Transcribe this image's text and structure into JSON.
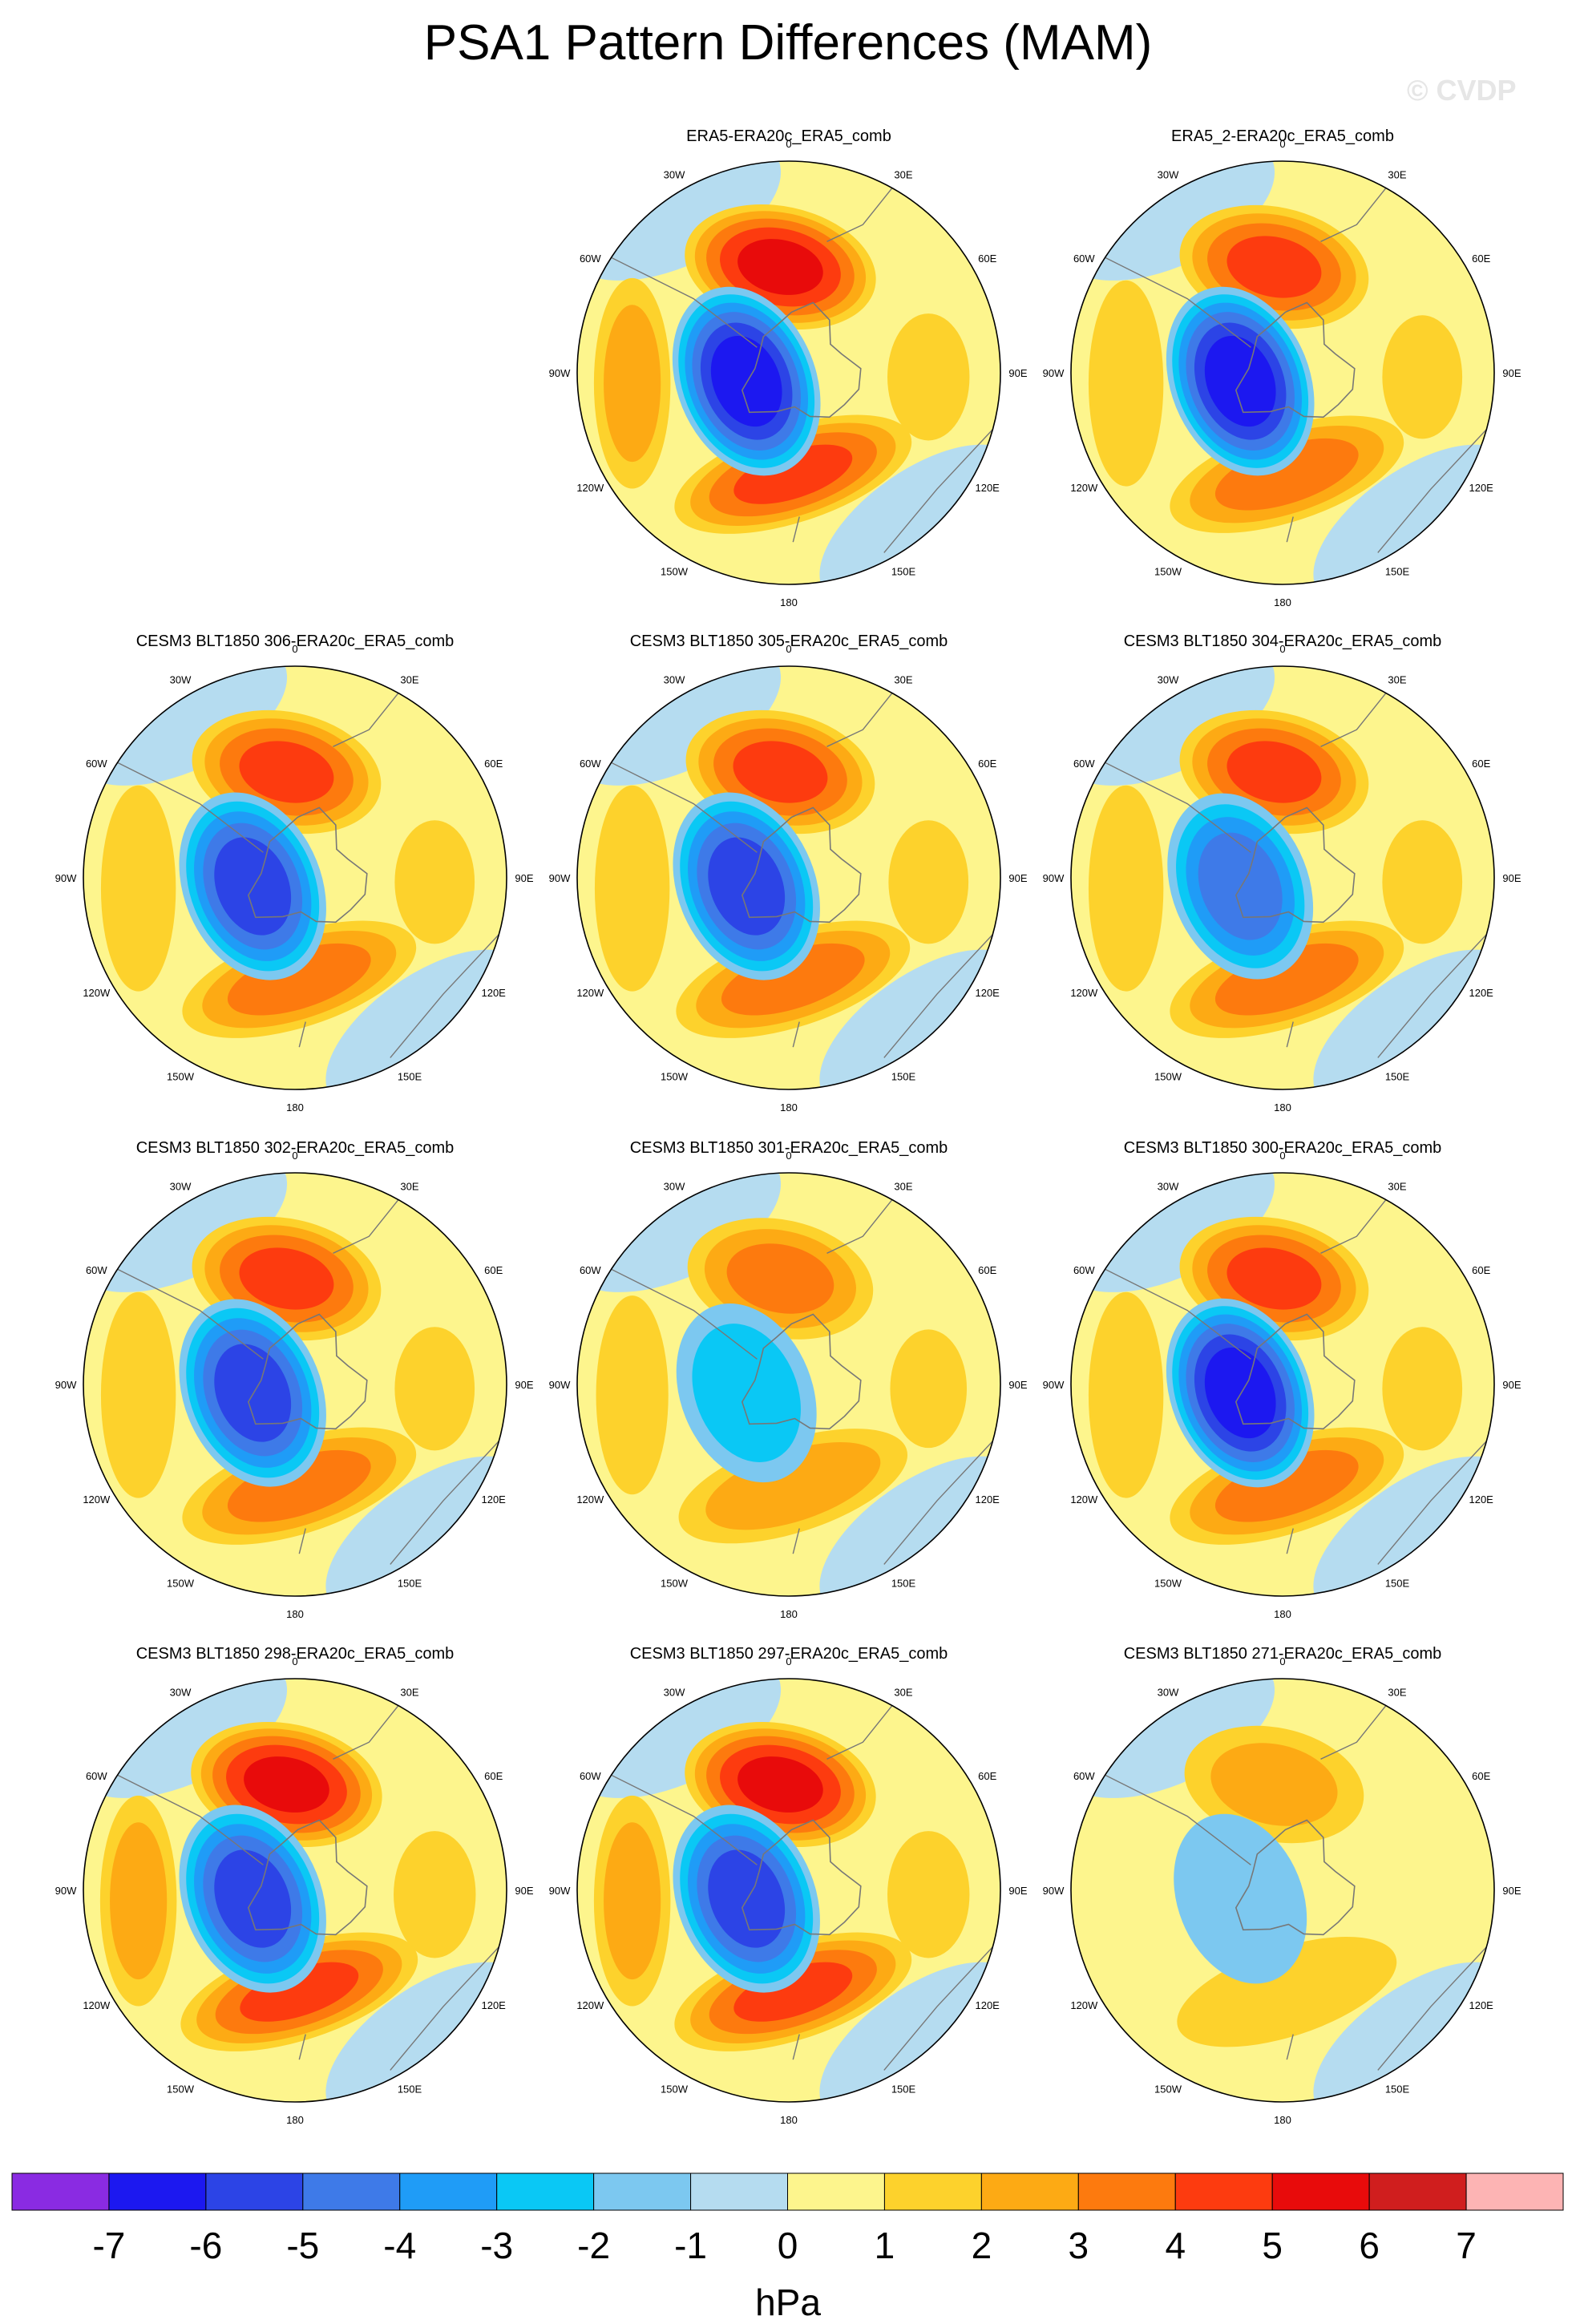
{
  "chart_data": {
    "type": "polar-contour-maps",
    "title": "PSA1 Pattern Differences (MAM)",
    "watermark": "© CVDP",
    "units": "hPa",
    "colorbar": {
      "ticks": [
        "-7",
        "-6",
        "-5",
        "-4",
        "-3",
        "-2",
        "-1",
        "0",
        "1",
        "2",
        "3",
        "4",
        "5",
        "6",
        "7"
      ],
      "colors": [
        "#8a2be2",
        "#1c18f0",
        "#2c44e6",
        "#3e7ae8",
        "#1f9cf7",
        "#0ac8f5",
        "#7cc8f0",
        "#b5dcf0",
        "#fdf58d",
        "#fdd22c",
        "#fdaa14",
        "#fd7a0e",
        "#fd3b0f",
        "#e80b0b",
        "#d01e1e",
        "#fdb4b4"
      ]
    },
    "map_labels": {
      "top": "0",
      "bottom": "180",
      "left": "90W",
      "right": "90E",
      "upper_left_1": "30W",
      "upper_right_1": "30E",
      "upper_left_2": "60W",
      "upper_right_2": "60E",
      "lower_left_1": "120W",
      "lower_right_1": "120E",
      "lower_left_2": "150W",
      "lower_right_2": "150E"
    },
    "panels": [
      {
        "title": "ERA5-ERA20c_ERA5_comb",
        "low_min": -6.5,
        "high_max": 5.0
      },
      {
        "title": "ERA5_2-ERA20c_ERA5_comb",
        "low_min": -6.5,
        "high_max": 4.0
      },
      {
        "title": "CESM3 BLT1850 306-ERA20c_ERA5_comb",
        "low_min": -5.5,
        "high_max": 4.0
      },
      {
        "title": "CESM3 BLT1850 305-ERA20c_ERA5_comb",
        "low_min": -5.5,
        "high_max": 4.0
      },
      {
        "title": "CESM3 BLT1850 304-ERA20c_ERA5_comb",
        "low_min": -4.5,
        "high_max": 4.0
      },
      {
        "title": "CESM3 BLT1850 302-ERA20c_ERA5_comb",
        "low_min": -5.5,
        "high_max": 4.0
      },
      {
        "title": "CESM3 BLT1850 301-ERA20c_ERA5_comb",
        "low_min": -2.5,
        "high_max": 3.0
      },
      {
        "title": "CESM3 BLT1850 300-ERA20c_ERA5_comb",
        "low_min": -6.5,
        "high_max": 4.0
      },
      {
        "title": "CESM3 BLT1850 298-ERA20c_ERA5_comb",
        "low_min": -5.5,
        "high_max": 5.0
      },
      {
        "title": "CESM3 BLT1850 297-ERA20c_ERA5_comb",
        "low_min": -5.5,
        "high_max": 5.0
      },
      {
        "title": "CESM3 BLT1850 271-ERA20c_ERA5_comb",
        "low_min": -1.5,
        "high_max": 2.0
      }
    ]
  }
}
